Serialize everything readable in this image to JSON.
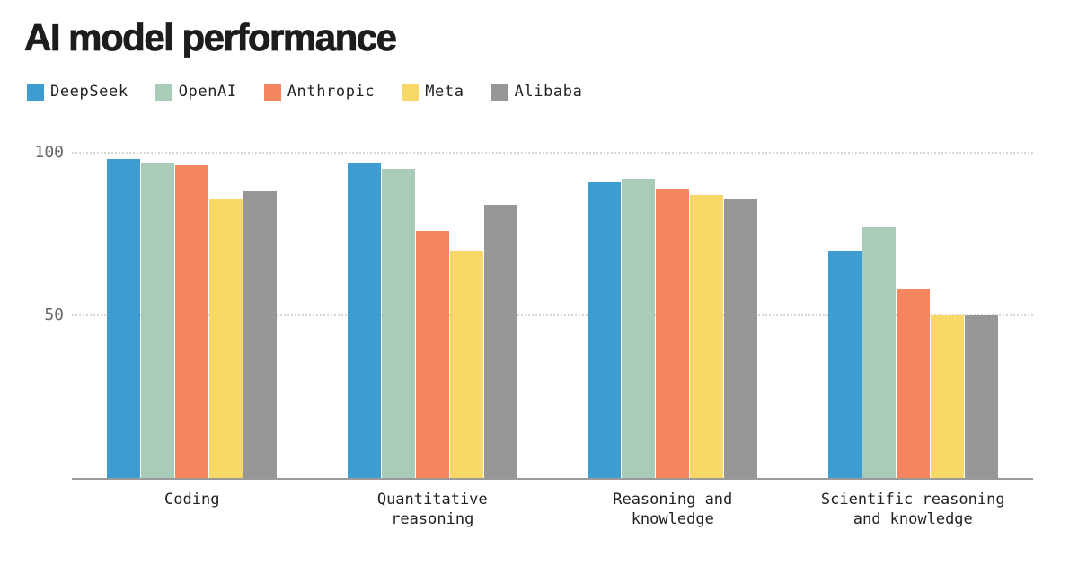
{
  "title": "AI model performance",
  "legend": [
    {
      "label": "DeepSeek",
      "color": "#3d9dd0"
    },
    {
      "label": "OpenAI",
      "color": "#a9ccb8"
    },
    {
      "label": "Anthropic",
      "color": "#f6865f"
    },
    {
      "label": "Meta",
      "color": "#f8d867"
    },
    {
      "label": "Alibaba",
      "color": "#979797"
    }
  ],
  "chart_data": {
    "type": "bar",
    "title": "AI model performance",
    "categories": [
      "Coding",
      "Quantitative reasoning",
      "Reasoning and knowledge",
      "Scientific reasoning and knowledge"
    ],
    "categories_display": [
      "Coding",
      "Quantitative\nreasoning",
      "Reasoning and\nknowledge",
      "Scientific reasoning\nand knowledge"
    ],
    "series": [
      {
        "name": "DeepSeek",
        "color": "#3d9dd0",
        "values": [
          98,
          97,
          91,
          70
        ]
      },
      {
        "name": "OpenAI",
        "color": "#a9ccb8",
        "values": [
          97,
          95,
          92,
          77
        ]
      },
      {
        "name": "Anthropic",
        "color": "#f6865f",
        "values": [
          96,
          76,
          89,
          58
        ]
      },
      {
        "name": "Meta",
        "color": "#f8d867",
        "values": [
          86,
          70,
          87,
          50
        ]
      },
      {
        "name": "Alibaba",
        "color": "#979797",
        "values": [
          88,
          84,
          86,
          50
        ]
      }
    ],
    "xlabel": "",
    "ylabel": "",
    "ylim": [
      0,
      100
    ],
    "yticks": [
      50,
      100
    ],
    "grid": "horizontal-dotted",
    "legend_position": "top-left",
    "baseline_color": "#9a9a9a",
    "gridline_color": "#d7d7d5",
    "title_color": "#1d1d1d",
    "tick_label_color": "#666666",
    "category_label_color": "#222222"
  }
}
